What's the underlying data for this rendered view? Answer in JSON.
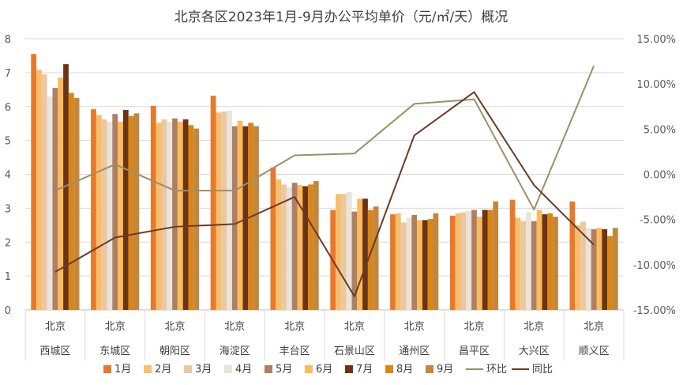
{
  "chart_data": {
    "type": "bar",
    "title": "北京各区2023年1月-9月办公平均单价（元/㎡/天）概况",
    "categories": [
      "西城区",
      "东城区",
      "朝阳区",
      "海淀区",
      "丰台区",
      "石景山区",
      "通州区",
      "昌平区",
      "大兴区",
      "顺义区"
    ],
    "category_group_label": "北京",
    "ylim": [
      0,
      8
    ],
    "y_ticks": [
      "0",
      "1",
      "2",
      "3",
      "4",
      "5",
      "6",
      "7",
      "8"
    ],
    "y2lim": [
      -15,
      15
    ],
    "y2_ticks": [
      "-15.00%",
      "-10.00%",
      "-5.00%",
      "0.00%",
      "5.00%",
      "10.00%",
      "15.00%"
    ],
    "grid": "horizontal",
    "legend_position": "bottom",
    "series": [
      {
        "name": "1月",
        "color": "#E8792A",
        "values": [
          7.55,
          5.92,
          6.02,
          6.32,
          4.2,
          2.95,
          2.82,
          2.78,
          3.25,
          3.2
        ]
      },
      {
        "name": "2月",
        "color": "#F8BE6E",
        "values": [
          7.08,
          5.75,
          5.52,
          5.82,
          3.85,
          3.42,
          2.85,
          2.85,
          2.72,
          2.5
        ]
      },
      {
        "name": "3月",
        "color": "#E9C8A2",
        "values": [
          6.95,
          5.62,
          5.62,
          5.85,
          3.7,
          3.42,
          2.58,
          2.88,
          2.62,
          2.6
        ]
      },
      {
        "name": "4月",
        "color": "#EAE3D9",
        "values": [
          6.3,
          5.55,
          5.55,
          5.88,
          3.62,
          3.48,
          2.72,
          2.92,
          2.88,
          2.42
        ]
      },
      {
        "name": "5月",
        "color": "#AD8064",
        "values": [
          6.55,
          5.78,
          5.65,
          5.42,
          3.75,
          2.9,
          2.8,
          2.95,
          2.62,
          2.38
        ]
      },
      {
        "name": "6月",
        "color": "#FBBA5C",
        "values": [
          6.85,
          5.55,
          5.55,
          5.58,
          3.68,
          3.28,
          2.65,
          2.75,
          2.95,
          2.42
        ]
      },
      {
        "name": "7月",
        "color": "#6B3414",
        "values": [
          7.25,
          5.9,
          5.62,
          5.42,
          3.65,
          3.28,
          2.65,
          2.95,
          2.82,
          2.38
        ]
      },
      {
        "name": "8月",
        "color": "#D98617",
        "values": [
          6.4,
          5.72,
          5.45,
          5.52,
          3.7,
          2.95,
          2.68,
          2.95,
          2.85,
          2.18
        ]
      },
      {
        "name": "9月",
        "color": "#C2873F",
        "values": [
          6.25,
          5.8,
          5.35,
          5.42,
          3.8,
          3.05,
          2.85,
          3.2,
          2.75,
          2.42
        ]
      }
    ],
    "line_series": [
      {
        "name": "环比",
        "color": "#9C8F66",
        "axis": "right",
        "values": [
          -1.8,
          1.1,
          -1.8,
          -1.8,
          2.1,
          2.3,
          7.8,
          8.3,
          -3.9,
          12.0
        ]
      },
      {
        "name": "同比",
        "color": "#6B3A24",
        "axis": "right",
        "values": [
          -10.8,
          -7.0,
          -5.8,
          -5.5,
          -2.5,
          -13.5,
          4.3,
          9.1,
          -1.2,
          -7.8
        ]
      }
    ]
  }
}
